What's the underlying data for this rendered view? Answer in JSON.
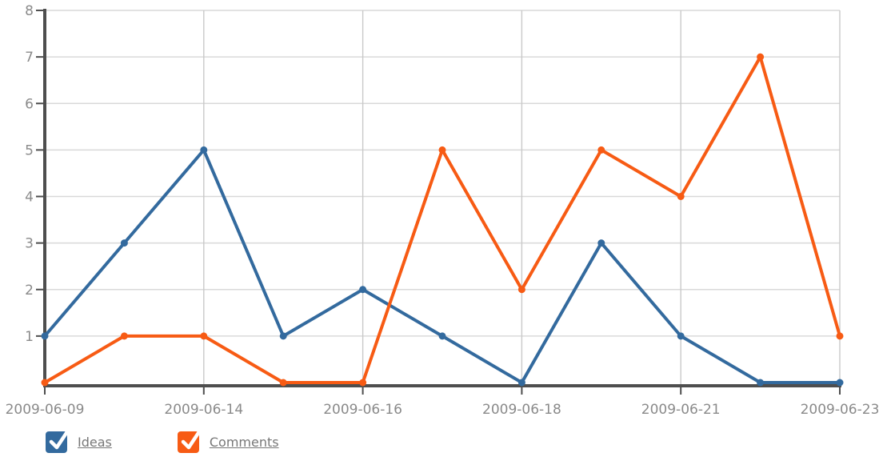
{
  "chart_data": {
    "type": "line",
    "title": "",
    "xlabel": "",
    "ylabel": "",
    "x_tick_labels": [
      "2009-06-09",
      "",
      "2009-06-14",
      "",
      "2009-06-16",
      "",
      "2009-06-18",
      "",
      "2009-06-21",
      "",
      "2009-06-23"
    ],
    "y_ticks": [
      1,
      2,
      3,
      4,
      5,
      6,
      7,
      8
    ],
    "ylim": [
      0,
      8
    ],
    "grid": true,
    "legend_position": "bottom-left",
    "series": [
      {
        "name": "Ideas",
        "color": "#336A9E",
        "values": [
          1,
          3,
          5,
          1,
          2,
          1,
          0,
          3,
          1,
          0,
          0
        ]
      },
      {
        "name": "Comments",
        "color": "#F75B14",
        "values": [
          0,
          1,
          1,
          0,
          0,
          5,
          2,
          5,
          4,
          7,
          1
        ]
      }
    ]
  },
  "legend": {
    "items": [
      {
        "label": "Ideas",
        "color": "#336A9E",
        "checked": true
      },
      {
        "label": "Comments",
        "color": "#F75B14",
        "checked": true
      }
    ]
  },
  "colors": {
    "axis": "#4e4e4e",
    "grid_horizontal": "#d9d9d9",
    "grid_vertical": "#c9c9c9",
    "tick_text": "#8a8a8a",
    "legend_text": "#777777",
    "checkmark": "#ffffff",
    "background": "#ffffff"
  }
}
